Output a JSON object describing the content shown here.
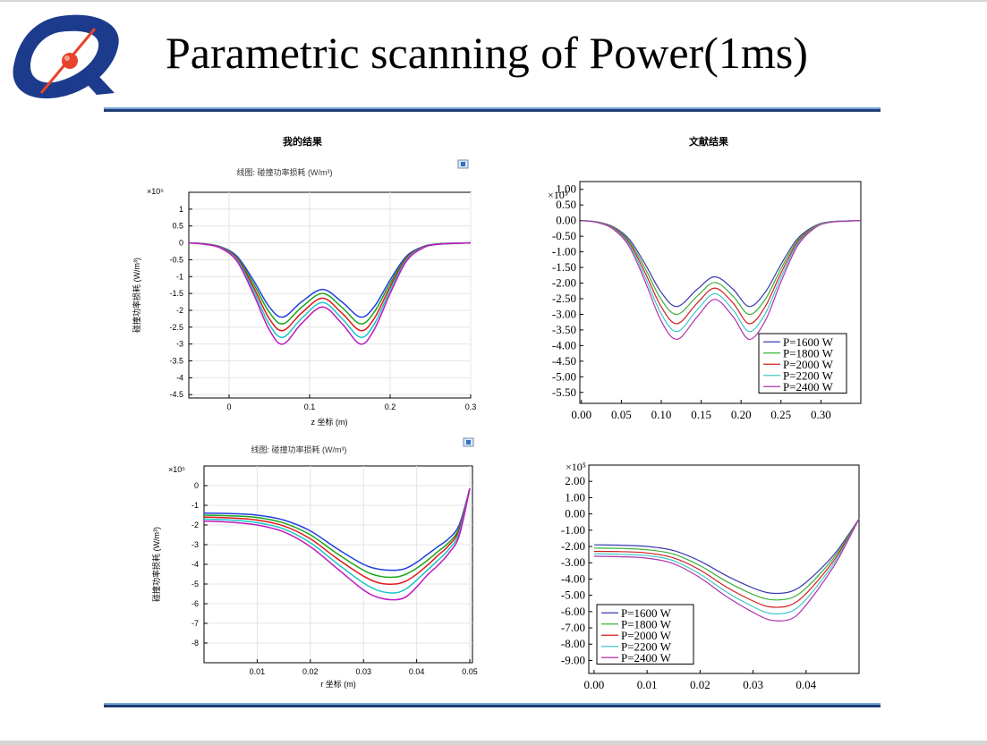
{
  "slide": {
    "title": "Parametric scanning of Power(1ms)",
    "left_heading": "我的结果",
    "right_heading": "文献结果",
    "colors": {
      "rule_dark": "#1f3d74",
      "rule_light": "#7aa6d6",
      "logo_blue": "#1d3b8c",
      "logo_red": "#e8432b"
    }
  },
  "chart_data": [
    {
      "type": "line",
      "panel": "my-result-axial",
      "title": "线图: 碰撞功率损耗 (W/m³)",
      "xlabel": "z 坐标 (m)",
      "ylabel": "碰撞功率损耗 (W/m³)",
      "scale_label": "×10⁵",
      "xlim": [
        -0.05,
        0.3
      ],
      "ylim": [
        -4.6,
        1.5
      ],
      "xticks": [
        "0",
        "0.1",
        "0.2",
        "0.3"
      ],
      "xtick_values": [
        0,
        0.1,
        0.2,
        0.3
      ],
      "yticks": [
        "1",
        "0.5",
        "0",
        "-0.5",
        "-1",
        "-1.5",
        "-2",
        "-2.5",
        "-3",
        "-3.5",
        "-4",
        "-4.5"
      ],
      "ytick_values": [
        1,
        0.5,
        0,
        -0.5,
        -1,
        -1.5,
        -2,
        -2.5,
        -3,
        -3.5,
        -4,
        -4.5
      ],
      "x": [
        -0.05,
        -0.03,
        -0.01,
        0.01,
        0.03,
        0.05,
        0.067,
        0.09,
        0.116,
        0.14,
        0.163,
        0.18,
        0.2,
        0.22,
        0.24,
        0.26,
        0.3
      ],
      "series": [
        {
          "name": "P=1600 W",
          "color": "#1f3fe0",
          "values": [
            0,
            -0.03,
            -0.12,
            -0.4,
            -1.1,
            -1.9,
            -2.2,
            -1.75,
            -1.38,
            -1.75,
            -2.2,
            -1.9,
            -1.1,
            -0.4,
            -0.12,
            -0.03,
            0
          ]
        },
        {
          "name": "P=1800 W",
          "color": "#1aa51a",
          "values": [
            0,
            -0.03,
            -0.13,
            -0.44,
            -1.2,
            -2.06,
            -2.4,
            -1.91,
            -1.5,
            -1.91,
            -2.4,
            -2.06,
            -1.2,
            -0.44,
            -0.13,
            -0.03,
            0
          ]
        },
        {
          "name": "P=2000 W",
          "color": "#e01818",
          "values": [
            0,
            -0.04,
            -0.14,
            -0.47,
            -1.3,
            -2.25,
            -2.6,
            -2.08,
            -1.64,
            -2.08,
            -2.6,
            -2.25,
            -1.3,
            -0.47,
            -0.14,
            -0.04,
            0
          ]
        },
        {
          "name": "P=2200 W",
          "color": "#18c7c7",
          "values": [
            0,
            -0.04,
            -0.15,
            -0.51,
            -1.4,
            -2.42,
            -2.8,
            -2.24,
            -1.77,
            -2.24,
            -2.8,
            -2.42,
            -1.4,
            -0.51,
            -0.15,
            -0.04,
            0
          ]
        },
        {
          "name": "P=2400 W",
          "color": "#c018c0",
          "values": [
            0,
            -0.04,
            -0.16,
            -0.55,
            -1.5,
            -2.58,
            -3.0,
            -2.39,
            -1.9,
            -2.39,
            -3.0,
            -2.58,
            -1.5,
            -0.55,
            -0.16,
            -0.04,
            0
          ]
        }
      ]
    },
    {
      "type": "line",
      "panel": "reference-axial",
      "title": "",
      "xlabel": "",
      "ylabel": "",
      "scale_label": "×10⁵",
      "xlim": [
        -0.002,
        0.35
      ],
      "ylim": [
        -5.85,
        1.25
      ],
      "xticks": [
        "0.00",
        "0.05",
        "0.10",
        "0.15",
        "0.20",
        "0.25",
        "0.30"
      ],
      "xtick_values": [
        0,
        0.05,
        0.1,
        0.15,
        0.2,
        0.25,
        0.3
      ],
      "yticks": [
        "1.00",
        "0.50",
        "0.00",
        "-0.50",
        "-1.00",
        "-1.50",
        "-2.00",
        "-2.50",
        "-3.00",
        "-3.50",
        "-4.00",
        "-4.50",
        "-5.00",
        "-5.50"
      ],
      "ytick_values": [
        1,
        0.5,
        0,
        -0.5,
        -1,
        -1.5,
        -2,
        -2.5,
        -3,
        -3.5,
        -4,
        -4.5,
        -5,
        -5.5
      ],
      "legend": "bottom-right",
      "x": [
        0,
        0.02,
        0.04,
        0.06,
        0.08,
        0.1,
        0.12,
        0.145,
        0.167,
        0.19,
        0.21,
        0.23,
        0.25,
        0.27,
        0.29,
        0.31,
        0.35
      ],
      "series": [
        {
          "name": "P=1600 W",
          "color": "#3a3ab0",
          "values": [
            0,
            -0.04,
            -0.2,
            -0.6,
            -1.4,
            -2.3,
            -2.75,
            -2.2,
            -1.8,
            -2.2,
            -2.75,
            -2.3,
            -1.4,
            -0.6,
            -0.2,
            -0.04,
            0
          ]
        },
        {
          "name": "P=1800 W",
          "color": "#3ab03a",
          "values": [
            0,
            -0.04,
            -0.22,
            -0.66,
            -1.54,
            -2.53,
            -3.0,
            -2.42,
            -1.98,
            -2.42,
            -3.0,
            -2.53,
            -1.54,
            -0.66,
            -0.22,
            -0.04,
            0
          ]
        },
        {
          "name": "P=2000 W",
          "color": "#d02020",
          "values": [
            0,
            -0.05,
            -0.24,
            -0.72,
            -1.68,
            -2.76,
            -3.3,
            -2.64,
            -2.16,
            -2.64,
            -3.3,
            -2.76,
            -1.68,
            -0.72,
            -0.24,
            -0.05,
            0
          ]
        },
        {
          "name": "P=2200 W",
          "color": "#40c8c8",
          "values": [
            0,
            -0.05,
            -0.26,
            -0.78,
            -1.82,
            -2.99,
            -3.55,
            -2.86,
            -2.34,
            -2.86,
            -3.55,
            -2.99,
            -1.82,
            -0.78,
            -0.26,
            -0.05,
            0
          ]
        },
        {
          "name": "P=2400 W",
          "color": "#b030b0",
          "values": [
            0,
            -0.06,
            -0.28,
            -0.84,
            -1.96,
            -3.22,
            -3.8,
            -3.08,
            -2.52,
            -3.08,
            -3.8,
            -3.22,
            -1.96,
            -0.84,
            -0.28,
            -0.06,
            0
          ]
        }
      ]
    },
    {
      "type": "line",
      "panel": "my-result-radial",
      "title": "线图: 碰撞功率损耗 (W/m³)",
      "xlabel": "r 坐标 (m)",
      "ylabel": "碰撞功率损耗 (W/m³)",
      "scale_label": "×10⁵",
      "xlim": [
        0,
        0.0505
      ],
      "ylim": [
        -9,
        1
      ],
      "xticks": [
        "0.01",
        "0.02",
        "0.03",
        "0.04",
        "0.05"
      ],
      "xtick_values": [
        0.01,
        0.02,
        0.03,
        0.04,
        0.05
      ],
      "yticks": [
        "0",
        "-1",
        "-2",
        "-3",
        "-4",
        "-5",
        "-6",
        "-7",
        "-8"
      ],
      "ytick_values": [
        0,
        -1,
        -2,
        -3,
        -4,
        -5,
        -6,
        -7,
        -8
      ],
      "x": [
        0,
        0.005,
        0.01,
        0.015,
        0.02,
        0.025,
        0.03,
        0.033,
        0.036,
        0.038,
        0.04,
        0.042,
        0.044,
        0.046,
        0.048,
        0.05
      ],
      "series": [
        {
          "name": "P=1600 W",
          "color": "#1f3fe0",
          "values": [
            -1.4,
            -1.42,
            -1.5,
            -1.75,
            -2.3,
            -3.2,
            -4.0,
            -4.25,
            -4.3,
            -4.2,
            -3.9,
            -3.5,
            -3.1,
            -2.7,
            -2.0,
            -0.15
          ]
        },
        {
          "name": "P=1800 W",
          "color": "#1aa51a",
          "values": [
            -1.5,
            -1.53,
            -1.62,
            -1.9,
            -2.5,
            -3.45,
            -4.3,
            -4.6,
            -4.65,
            -4.5,
            -4.2,
            -3.8,
            -3.35,
            -2.9,
            -2.15,
            -0.15
          ]
        },
        {
          "name": "P=2000 W",
          "color": "#e01818",
          "values": [
            -1.6,
            -1.64,
            -1.75,
            -2.05,
            -2.7,
            -3.7,
            -4.6,
            -4.95,
            -5.0,
            -4.85,
            -4.5,
            -4.05,
            -3.55,
            -3.05,
            -2.25,
            -0.15
          ]
        },
        {
          "name": "P=2200 W",
          "color": "#18c7c7",
          "values": [
            -1.7,
            -1.75,
            -1.88,
            -2.2,
            -2.9,
            -3.95,
            -4.95,
            -5.35,
            -5.45,
            -5.25,
            -4.8,
            -4.3,
            -3.8,
            -3.25,
            -2.4,
            -0.15
          ]
        },
        {
          "name": "P=2400 W",
          "color": "#c018c0",
          "values": [
            -1.8,
            -1.86,
            -2.0,
            -2.35,
            -3.1,
            -4.2,
            -5.3,
            -5.7,
            -5.8,
            -5.65,
            -5.15,
            -4.55,
            -4.05,
            -3.45,
            -2.55,
            -0.15
          ]
        }
      ]
    },
    {
      "type": "line",
      "panel": "reference-radial",
      "title": "",
      "xlabel": "",
      "ylabel": "",
      "scale_label": "×10⁵",
      "xlim": [
        -0.001,
        0.05
      ],
      "ylim": [
        -9.8,
        3.0
      ],
      "xticks": [
        "0.00",
        "0.01",
        "0.02",
        "0.03",
        "0.04"
      ],
      "xtick_values": [
        0,
        0.01,
        0.02,
        0.03,
        0.04
      ],
      "yticks": [
        "2.00",
        "1.00",
        "0.00",
        "-1.00",
        "-2.00",
        "-3.00",
        "-4.00",
        "-5.00",
        "-6.00",
        "-7.00",
        "-8.00",
        "-9.00"
      ],
      "ytick_values": [
        2,
        1,
        0,
        -1,
        -2,
        -3,
        -4,
        -5,
        -6,
        -7,
        -8,
        -9
      ],
      "legend": "bottom-left",
      "x": [
        0,
        0.005,
        0.01,
        0.015,
        0.02,
        0.025,
        0.03,
        0.033,
        0.036,
        0.038,
        0.04,
        0.043,
        0.046,
        0.05
      ],
      "series": [
        {
          "name": "P=1600 W",
          "color": "#3a3ab0",
          "values": [
            -1.9,
            -1.92,
            -2.0,
            -2.25,
            -2.9,
            -3.8,
            -4.55,
            -4.85,
            -4.85,
            -4.65,
            -4.2,
            -3.3,
            -2.2,
            -0.3
          ]
        },
        {
          "name": "P=1800 W",
          "color": "#3ab03a",
          "values": [
            -2.1,
            -2.12,
            -2.2,
            -2.47,
            -3.18,
            -4.15,
            -4.95,
            -5.25,
            -5.25,
            -5.05,
            -4.55,
            -3.55,
            -2.35,
            -0.3
          ]
        },
        {
          "name": "P=2000 W",
          "color": "#d02020",
          "values": [
            -2.3,
            -2.32,
            -2.4,
            -2.7,
            -3.45,
            -4.5,
            -5.35,
            -5.7,
            -5.7,
            -5.45,
            -4.9,
            -3.8,
            -2.5,
            -0.3
          ]
        },
        {
          "name": "P=2200 W",
          "color": "#40c8c8",
          "values": [
            -2.45,
            -2.48,
            -2.56,
            -2.88,
            -3.7,
            -4.8,
            -5.7,
            -6.1,
            -6.1,
            -5.85,
            -5.25,
            -4.05,
            -2.65,
            -0.3
          ]
        },
        {
          "name": "P=2400 W",
          "color": "#b030b0",
          "values": [
            -2.6,
            -2.63,
            -2.72,
            -3.06,
            -3.92,
            -5.08,
            -6.05,
            -6.5,
            -6.55,
            -6.3,
            -5.6,
            -4.3,
            -2.8,
            -0.3
          ]
        }
      ]
    }
  ]
}
